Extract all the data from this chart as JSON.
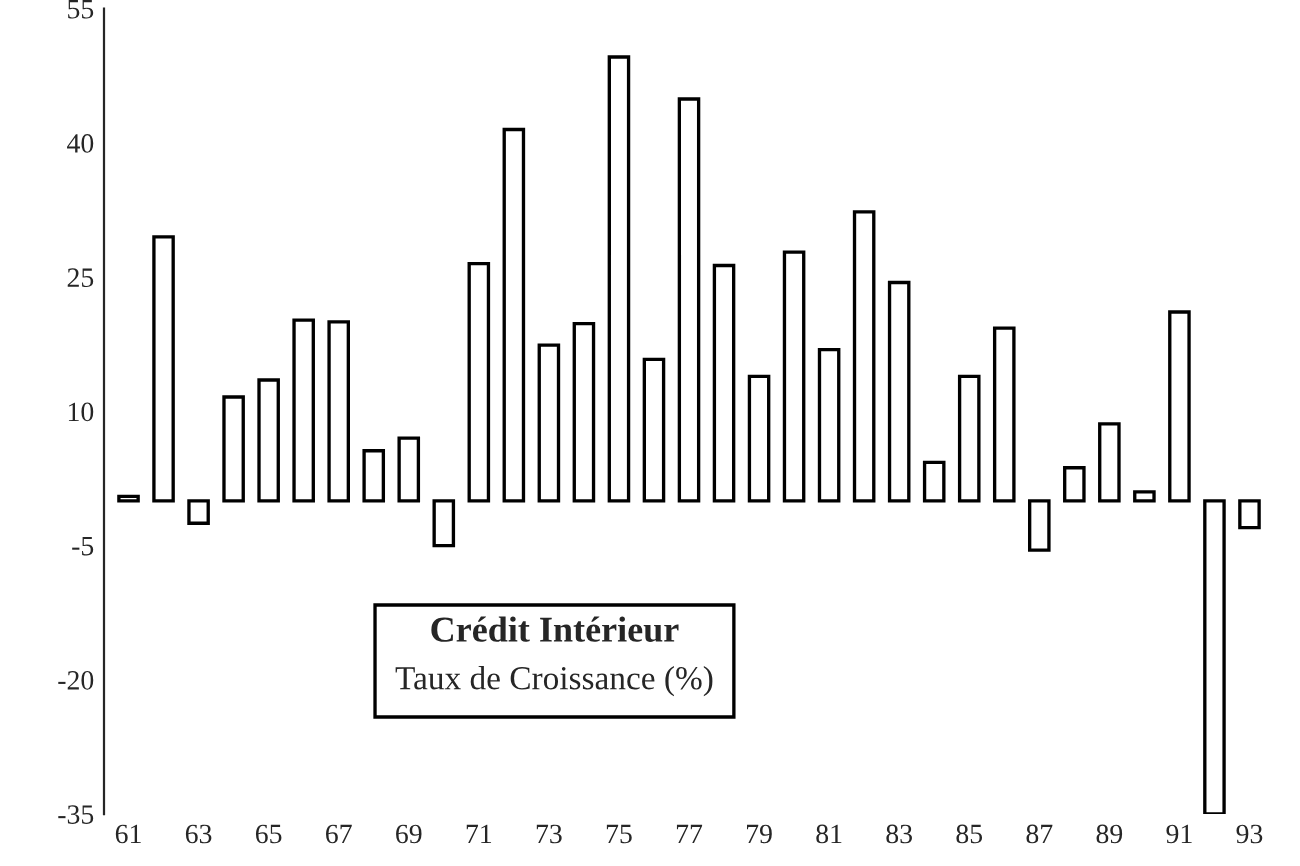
{
  "chart_data": {
    "type": "bar",
    "title": "Crédit Intérieur",
    "subtitle": "Taux de Croissance (%)",
    "categories": [
      "61",
      null,
      "63",
      null,
      "65",
      null,
      "67",
      null,
      "69",
      null,
      "71",
      null,
      "73",
      null,
      "75",
      null,
      "77",
      null,
      "79",
      null,
      "81",
      null,
      "83",
      null,
      "85",
      null,
      "87",
      null,
      "89",
      null,
      "91",
      null,
      "93"
    ],
    "values": [
      0.5,
      29.5,
      -2.5,
      11.6,
      13.5,
      20.2,
      20.0,
      5.6,
      7.0,
      -5.0,
      26.5,
      41.5,
      17.4,
      19.8,
      49.6,
      15.8,
      44.9,
      26.3,
      13.9,
      27.8,
      16.9,
      32.3,
      24.4,
      4.3,
      13.9,
      19.3,
      -5.5,
      3.7,
      8.6,
      1.0,
      21.1,
      -35,
      -3
    ],
    "color": "#ffffff",
    "ylim": [
      -35,
      55
    ],
    "yticks": [
      -35,
      -20,
      -5,
      10,
      25,
      40,
      55
    ],
    "grid": false,
    "legend": false
  }
}
